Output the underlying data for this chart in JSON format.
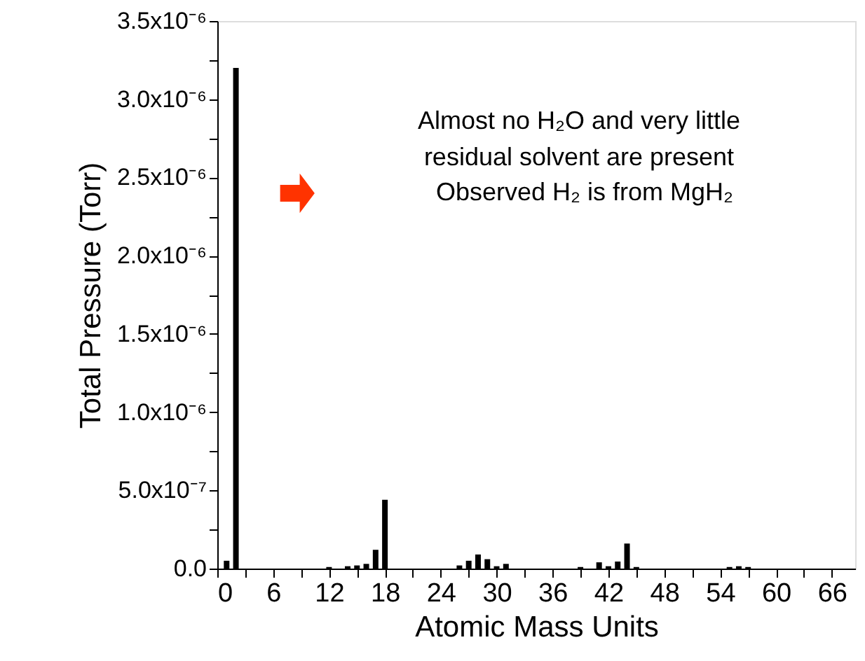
{
  "chart_data": {
    "type": "bar",
    "xlabel": "Atomic Mass Units",
    "ylabel": "Total Pressure (Torr)",
    "x": [
      1,
      2,
      12,
      14,
      15,
      16,
      17,
      18,
      26,
      27,
      28,
      29,
      30,
      31,
      39,
      41,
      42,
      43,
      44,
      45,
      55,
      56,
      57
    ],
    "values": [
      5e-08,
      3.2e-06,
      1e-08,
      1.5e-08,
      2e-08,
      3e-08,
      1.2e-07,
      4.4e-07,
      2e-08,
      5e-08,
      9e-08,
      6e-08,
      1.5e-08,
      3e-08,
      1e-08,
      4e-08,
      1.5e-08,
      4.5e-08,
      1.6e-07,
      1e-08,
      1e-08,
      1.5e-08,
      1e-08
    ],
    "color": "#000000",
    "xlim": [
      0,
      68.5
    ],
    "xticks": [
      0,
      {
        "value": 3,
        "label": null
      },
      6,
      {
        "value": 9,
        "label": null
      },
      12,
      {
        "value": 15,
        "label": null
      },
      18,
      {
        "value": 21,
        "label": null
      },
      24,
      {
        "value": 27,
        "label": null
      },
      30,
      {
        "value": 33,
        "label": null
      },
      36,
      {
        "value": 39,
        "label": null
      },
      42,
      {
        "value": 45,
        "label": null
      },
      48,
      {
        "value": 51,
        "label": null
      },
      54,
      {
        "value": 57,
        "label": null
      },
      60,
      {
        "value": 63,
        "label": null
      },
      66
    ],
    "ylim": [
      0,
      3.5e-06
    ],
    "yticks": [
      {
        "value": 0,
        "label": "0.0"
      },
      {
        "value": 2.5e-07,
        "label": null
      },
      {
        "value": 5e-07,
        "label": "5.0x10⁻⁷"
      },
      {
        "value": 7.5e-07,
        "label": null
      },
      {
        "value": 1e-06,
        "label": "1.0x10⁻⁶"
      },
      {
        "value": 1.25e-06,
        "label": null
      },
      {
        "value": 1.5e-06,
        "label": "1.5x10⁻⁶"
      },
      {
        "value": 1.75e-06,
        "label": null
      },
      {
        "value": 2e-06,
        "label": "2.0x10⁻⁶"
      },
      {
        "value": 2.25e-06,
        "label": null
      },
      {
        "value": 2.5e-06,
        "label": "2.5x10⁻⁶"
      },
      {
        "value": 2.75e-06,
        "label": null
      },
      {
        "value": 3e-06,
        "label": "3.0x10⁻⁶"
      },
      {
        "value": 3.25e-06,
        "label": null
      },
      {
        "value": 3.5e-06,
        "label": "3.5x10⁻⁶"
      }
    ],
    "annotations": [
      "Almost no H₂O and very little",
      "residual solvent are present",
      "Observed H₂ is from MgH₂"
    ],
    "grid": false
  }
}
